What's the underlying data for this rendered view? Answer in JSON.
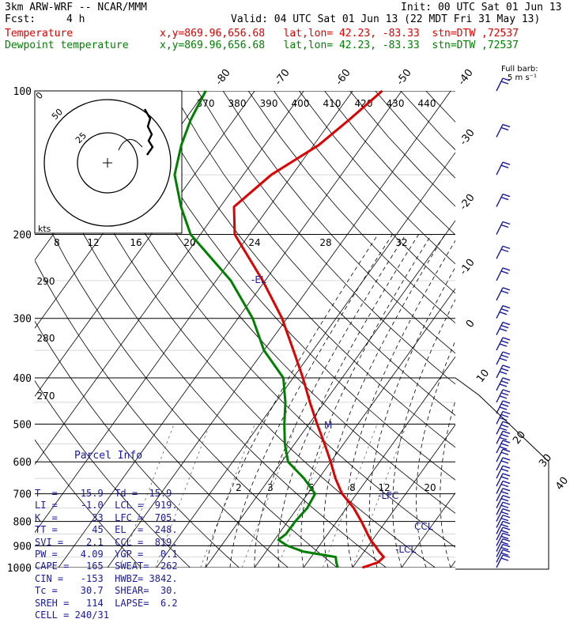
{
  "header": {
    "model": "3km ARW-WRF -- NCAR/MMM",
    "init": "Init: 00 UTC Sat 01 Jun 13",
    "fcst_label": "Fcst:",
    "fcst_value": "4 h",
    "valid": "Valid: 04 UTC Sat 01 Jun 13 (22 MDT Fri 31 May 13)",
    "temp_label": "Temperature",
    "temp_info": "x,y=869.96,656.68   lat,lon= 42.23, -83.33  stn=DTW ,72537",
    "dew_label": "Dewpoint temperature",
    "dew_info": "x,y=869.96,656.68   lat,lon= 42.23, -83.33  stn=DTW ,72537"
  },
  "full_barb": {
    "line1": "Full barb:",
    "line2": "5 m s⁻¹"
  },
  "parcel": {
    "title": "Parcel Info",
    "rows": [
      "T  =    15.9  Td =  15.9",
      "LI =    -1.0  LCL =  919.",
      "K  =      33  LFC =  705.",
      "TT =      45  EL  =  248.",
      "SVI =    2.1  CCL =  819.",
      "PW =    4.09  YGP =   0.1",
      "CAPE =   165  SWEAT=  262",
      "CIN =   -153  HWBZ= 3842.",
      "Tc =    30.7  SHEAR=  30.",
      "SREH =   114  LAPSE=  6.2",
      "CELL = 240/31"
    ]
  },
  "levels": {
    "el": "-EL",
    "lfc": "-LFC",
    "ccl": "CCL",
    "lcl": "-LCL",
    "marker": "M"
  },
  "hodograph": {
    "unit": "kts",
    "rings": [
      "25",
      "50"
    ]
  },
  "colors": {
    "temperature": "#e00000",
    "dewpoint": "#008000",
    "parcel": "#1a1aa0",
    "barbs": "#1a1aa0"
  },
  "chart_data": {
    "type": "line",
    "title": "",
    "yaxis": "pressure (hPa), log scale",
    "pressure_ticks": [
      100,
      200,
      300,
      400,
      500,
      600,
      700,
      800,
      900,
      1000
    ],
    "pressure_tick_labels": [
      "100",
      "200",
      "300",
      "400",
      "500",
      "600",
      "700",
      "800",
      "900",
      "1000"
    ],
    "isotherm_labels": [
      "-80",
      "-70",
      "-60",
      "-50",
      "-40",
      "-30",
      "-20",
      "-10",
      "0",
      "10",
      "20",
      "30",
      "40"
    ],
    "theta_labels": [
      "370",
      "380",
      "390",
      "400",
      "410",
      "420",
      "430",
      "440"
    ],
    "theta_dry_labels": [
      "290",
      "280",
      "270"
    ],
    "mixing_ratio_labels_upper": [
      "8",
      "12",
      "16",
      "20",
      "24",
      "28",
      "32"
    ],
    "mixing_ratio_labels_lower": [
      "2",
      "3",
      "5",
      "8",
      "12",
      "20"
    ],
    "series": [
      {
        "name": "Temperature",
        "points": [
          [
            1000,
            22.0
          ],
          [
            975,
            24.4
          ],
          [
            950,
            24.8
          ],
          [
            925,
            23.0
          ],
          [
            900,
            21.4
          ],
          [
            875,
            19.6
          ],
          [
            850,
            18.1
          ],
          [
            800,
            15.0
          ],
          [
            750,
            11.5
          ],
          [
            700,
            7.0
          ],
          [
            650,
            3.4
          ],
          [
            600,
            0.0
          ],
          [
            550,
            -3.9
          ],
          [
            500,
            -8.3
          ],
          [
            450,
            -13.0
          ],
          [
            400,
            -18.0
          ],
          [
            350,
            -24.0
          ],
          [
            300,
            -31.0
          ],
          [
            250,
            -40.5
          ],
          [
            200,
            -53.0
          ],
          [
            175,
            -57.2
          ],
          [
            150,
            -54.3
          ],
          [
            130,
            -49.0
          ],
          [
            115,
            -46.5
          ],
          [
            100,
            -44.0
          ]
        ]
      },
      {
        "name": "Dewpoint temperature",
        "points": [
          [
            1000,
            17.0
          ],
          [
            975,
            15.9
          ],
          [
            950,
            15.0
          ],
          [
            925,
            7.5
          ],
          [
            900,
            3.5
          ],
          [
            875,
            0.8
          ],
          [
            850,
            1.5
          ],
          [
            800,
            1.5
          ],
          [
            750,
            2.0
          ],
          [
            700,
            1.5
          ],
          [
            650,
            -3.0
          ],
          [
            600,
            -8.7
          ],
          [
            550,
            -12.0
          ],
          [
            500,
            -15.0
          ],
          [
            450,
            -18.0
          ],
          [
            400,
            -22.0
          ],
          [
            350,
            -30.0
          ],
          [
            300,
            -37.0
          ],
          [
            250,
            -47.0
          ],
          [
            200,
            -62.0
          ],
          [
            175,
            -68.0
          ],
          [
            150,
            -74.0
          ],
          [
            130,
            -77.0
          ],
          [
            115,
            -78.8
          ],
          [
            100,
            -80.0
          ]
        ]
      }
    ]
  }
}
